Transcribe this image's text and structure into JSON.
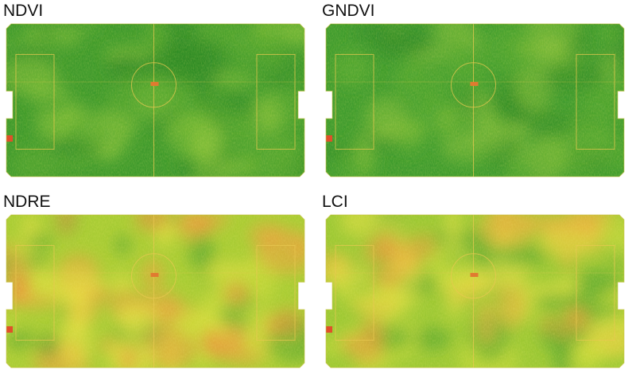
{
  "panels": [
    {
      "label": "NDVI"
    },
    {
      "label": "GNDVI"
    },
    {
      "label": "NDRE"
    },
    {
      "label": "LCI"
    }
  ]
}
